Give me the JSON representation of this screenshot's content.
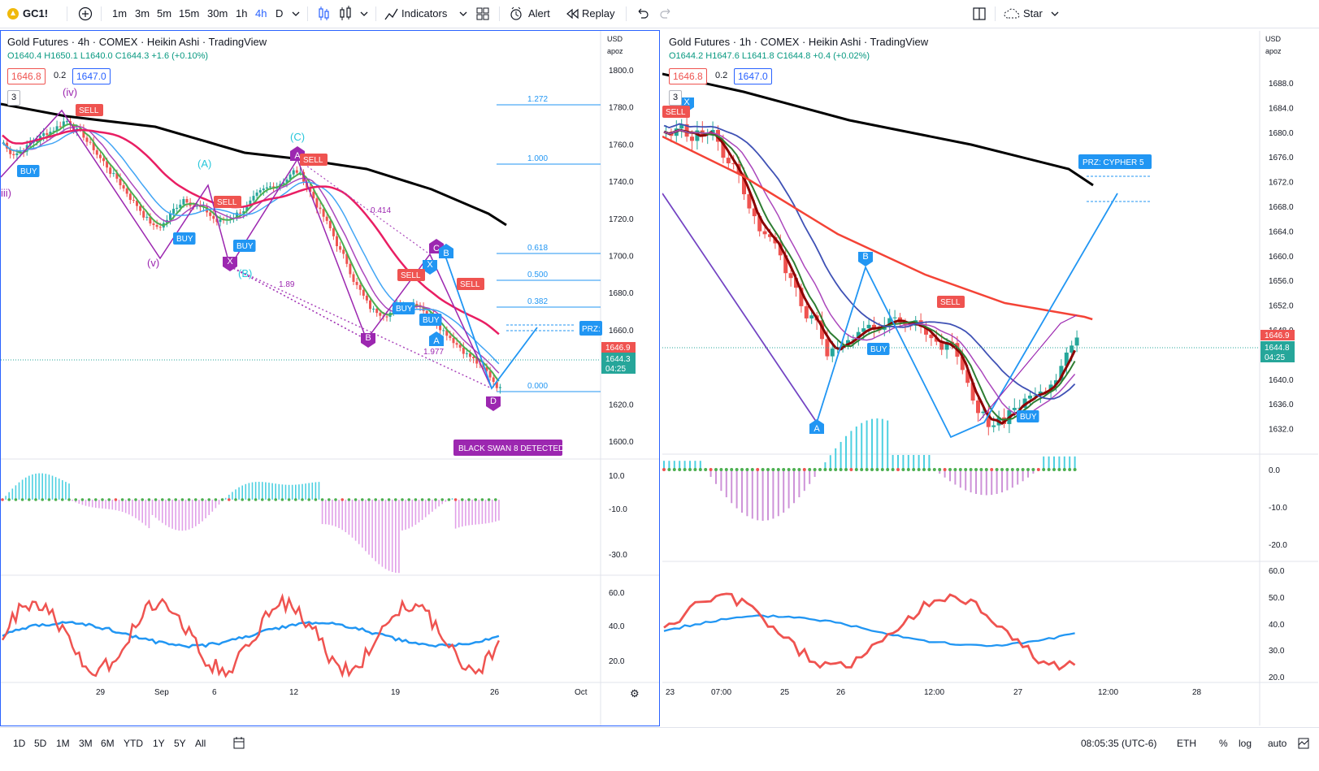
{
  "toolbar": {
    "symbol": "GC1!",
    "timeframes": [
      "1m",
      "3m",
      "5m",
      "15m",
      "30m",
      "1h",
      "4h",
      "D"
    ],
    "active_timeframe": "4h",
    "indicators_label": "Indicators",
    "alert_label": "Alert",
    "replay_label": "Replay",
    "star_label": "Star",
    "accent_color": "#2962ff"
  },
  "left_chart": {
    "title": "Gold Futures · 4h · COMEX · Heikin Ashi · TradingView",
    "ohlc": "O1640.4  H1650.1  L1640.0  C1644.3  +1.6 (+0.10%)",
    "bid": "1646.8",
    "spread": "0.2",
    "ask": "1647.0",
    "indicator_count": "3",
    "currency": "USD",
    "scale_mode": "apoz",
    "price_ticks": [
      "1800.0",
      "1780.0",
      "1760.0",
      "1740.0",
      "1720.0",
      "1700.0",
      "1680.0",
      "1660.0",
      "1640.0",
      "1620.0",
      "1600.0"
    ],
    "osc_ticks": [
      "10.0",
      "-10.0",
      "-30.0"
    ],
    "rsi_ticks": [
      "60.0",
      "40.0",
      "20.0"
    ],
    "date_ticks": [
      "29",
      "Sep",
      "6",
      "12",
      "19",
      "26",
      "Oct"
    ],
    "current_price": "1646.9",
    "last_price": "1644.3",
    "countdown": "04:25",
    "fib_levels": [
      "1.272",
      "1.000",
      "0.618",
      "0.500",
      "0.382",
      "0.000"
    ],
    "ratio_labels": [
      "0.414",
      "1.89",
      "1.977"
    ],
    "wave_labels": [
      "(iv)",
      "(v)",
      "(A)",
      "(B)",
      "(C)",
      "iii)"
    ],
    "pattern_points": [
      "X",
      "A",
      "B",
      "C",
      "D"
    ],
    "signals": {
      "buy": "BUY",
      "sell": "SELL"
    },
    "prz_label": "PRZ:",
    "detection_label": "BLACK SWAN 8 DETECTED"
  },
  "right_chart": {
    "title": "Gold Futures · 1h · COMEX · Heikin Ashi · TradingView",
    "ohlc": "O1644.2  H1647.6  L1641.8  C1644.8  +0.4 (+0.02%)",
    "bid": "1646.8",
    "spread": "0.2",
    "ask": "1647.0",
    "indicator_count": "3",
    "currency": "USD",
    "scale_mode": "apoz",
    "price_ticks": [
      "1688.0",
      "1684.0",
      "1680.0",
      "1676.0",
      "1672.0",
      "1668.0",
      "1664.0",
      "1660.0",
      "1656.0",
      "1652.0",
      "1648.0",
      "1640.0",
      "1636.0",
      "1632.0"
    ],
    "osc_ticks": [
      "0.0",
      "-10.0",
      "-20.0"
    ],
    "rsi_ticks": [
      "60.0",
      "50.0",
      "40.0",
      "30.0",
      "20.0"
    ],
    "date_ticks": [
      "23",
      "07:00",
      "25",
      "26",
      "12:00",
      "27",
      "12:00",
      "28"
    ],
    "current_price": "1646.9",
    "last_price": "1644.8",
    "countdown": "04:25",
    "pattern_points": [
      "X",
      "A",
      "B"
    ],
    "prz_label": "PRZ: CYPHER 5",
    "signals": {
      "buy": "BUY",
      "sell": "SELL"
    }
  },
  "bottom_bar": {
    "ranges": [
      "1D",
      "5D",
      "1M",
      "3M",
      "6M",
      "YTD",
      "1Y",
      "5Y",
      "All"
    ],
    "time": "08:05:35 (UTC-6)",
    "session": "ETH",
    "percent": "%",
    "log": "log",
    "auto": "auto"
  },
  "colors": {
    "up": "#26a69a",
    "down": "#ef5350",
    "pattern_purple": "#9c27b0",
    "pattern_blue": "#2196f3",
    "ma_black": "#000000",
    "ma_red": "#e91e63"
  }
}
